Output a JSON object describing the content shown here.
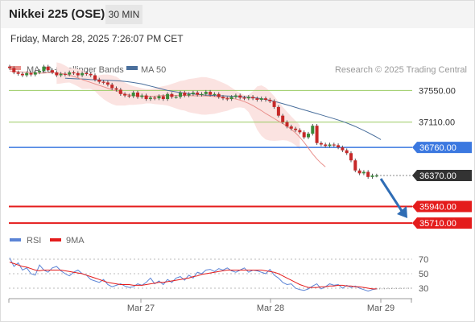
{
  "header": {
    "title": "Nikkei 225 (OSE)",
    "interval": "30 MIN",
    "timestamp": "Friday, March 28, 2025 7:26:07 PM CET"
  },
  "colors": {
    "ma20": "#e9908c",
    "band_fill": "#fbe3e1",
    "ma50": "#4a6f9c",
    "resistance": "#9acb63",
    "pivot": "#3b78e0",
    "support": "#e41c1c",
    "current": "#333333",
    "candle_up": "#3a8a3a",
    "candle_down": "#c62828",
    "rsi": "#5b84d6",
    "rsi_ma": "#e41c1c",
    "arrow": "#2f6db5"
  },
  "chart_data": {
    "type": "candlestick",
    "legend": [
      {
        "label": "MA 20 + Bollinger Bands",
        "color": "#e9908c"
      },
      {
        "label": "MA 50",
        "color": "#4a6f9c"
      }
    ],
    "credit": "Research © 2025 Trading Central",
    "x_ticks": [
      "Mar 27",
      "Mar 28",
      "Mar 29"
    ],
    "price_ylim": [
      35600,
      38000
    ],
    "levels": [
      {
        "value": 37550,
        "label": "37550.00",
        "kind": "resistance"
      },
      {
        "value": 37110,
        "label": "37110.00",
        "kind": "resistance"
      },
      {
        "value": 36760,
        "label": "36760.00",
        "kind": "pivot"
      },
      {
        "value": 36370,
        "label": "36370.00",
        "kind": "current"
      },
      {
        "value": 35940,
        "label": "35940.00",
        "kind": "support"
      },
      {
        "value": 35710,
        "label": "35710.00",
        "kind": "support"
      }
    ],
    "close": [
      37860,
      37800,
      37780,
      37760,
      37790,
      37770,
      37800,
      37820,
      37880,
      37830,
      37800,
      37760,
      37780,
      37770,
      37800,
      37790,
      37760,
      37790,
      37780,
      37760,
      37700,
      37670,
      37660,
      37630,
      37580,
      37560,
      37500,
      37480,
      37470,
      37520,
      37460,
      37480,
      37430,
      37450,
      37440,
      37470,
      37430,
      37500,
      37460,
      37460,
      37520,
      37480,
      37500,
      37520,
      37490,
      37500,
      37530,
      37490,
      37500,
      37460,
      37440,
      37430,
      37460,
      37480,
      37450,
      37440,
      37460,
      37440,
      37420,
      37440,
      37420,
      37400,
      37320,
      37200,
      37110,
      37050,
      37020,
      37000,
      36970,
      36900,
      36950,
      37060,
      36820,
      36800,
      36780,
      36800,
      36790,
      36760,
      36720,
      36680,
      36580,
      36440,
      36400,
      36420,
      36350,
      36370,
      36370
    ],
    "ma20": [
      37820,
      37815,
      37810,
      37805,
      37800,
      37795,
      37790,
      37790,
      37790,
      37795,
      37795,
      37790,
      37785,
      37775,
      37760,
      37745,
      37725,
      37700,
      37680,
      37660,
      37640,
      37620,
      37600,
      37580,
      37560,
      37540,
      37520,
      37500,
      37490,
      37480,
      37475,
      37470,
      37470,
      37470,
      37470,
      37475,
      37480,
      37480,
      37480,
      37480,
      37480,
      37480,
      37478,
      37476,
      37475,
      37475,
      37473,
      37470,
      37465,
      37460,
      37455,
      37448,
      37440,
      37430,
      37415,
      37395,
      37370,
      37340,
      37305,
      37270,
      37230,
      37195,
      37160,
      37125,
      37090,
      37055,
      37010,
      36960,
      36900,
      36830,
      36750,
      36670,
      36600,
      36540,
      36490
    ],
    "ma20_x0": 11,
    "band_width": [
      150,
      140,
      120,
      100,
      110,
      120,
      130,
      110,
      90,
      100,
      140,
      170,
      190,
      200,
      200,
      180,
      160,
      140,
      130,
      120,
      110,
      100,
      100,
      110,
      120,
      130,
      140,
      160,
      180,
      200,
      210,
      230,
      240,
      250,
      260,
      260,
      250,
      240,
      220,
      200,
      180,
      150,
      120,
      100,
      90,
      120,
      200,
      300,
      350,
      360,
      340,
      310,
      270,
      230,
      200,
      180,
      170,
      170
    ],
    "ma50": [
      37720,
      37715,
      37712,
      37710,
      37708,
      37705,
      37700,
      37698,
      37695,
      37692,
      37690,
      37688,
      37685,
      37680,
      37675,
      37668,
      37660,
      37650,
      37640,
      37625,
      37610,
      37595,
      37580,
      37565,
      37550,
      37540,
      37530,
      37520,
      37512,
      37506,
      37500,
      37495,
      37490,
      37485,
      37482,
      37480,
      37477,
      37475,
      37472,
      37470,
      37467,
      37463,
      37460,
      37455,
      37450,
      37443,
      37435,
      37425,
      37412,
      37398,
      37383,
      37367,
      37350,
      37333,
      37315,
      37297,
      37280,
      37263,
      37245,
      37228,
      37211,
      37193,
      37176,
      37158,
      37140,
      37120,
      37098,
      37075,
      37050,
      37023,
      36995,
      36965,
      36934,
      36902,
      36868
    ],
    "rsi_ylim": [
      20,
      80
    ],
    "rsi_ticks": [
      70,
      50,
      30
    ],
    "rsi_legend": [
      {
        "label": "RSI",
        "color": "#5b84d6"
      },
      {
        "label": "9MA",
        "color": "#e41c1c"
      }
    ],
    "rsi": [
      72,
      60,
      65,
      55,
      58,
      50,
      48,
      62,
      55,
      52,
      58,
      60,
      54,
      50,
      47,
      52,
      55,
      50,
      48,
      42,
      40,
      38,
      42,
      35,
      32,
      34,
      36,
      33,
      31,
      32,
      36,
      34,
      38,
      44,
      36,
      40,
      35,
      42,
      38,
      44,
      46,
      41,
      48,
      44,
      52,
      50,
      55,
      56,
      53,
      57,
      55,
      58,
      54,
      52,
      55,
      58,
      52,
      55,
      54,
      52,
      50,
      56,
      48,
      44,
      38,
      35,
      36,
      30,
      28,
      27,
      29,
      33,
      36,
      29,
      32,
      36,
      34,
      35,
      30,
      34,
      31,
      33,
      30,
      28,
      26,
      28,
      29
    ],
    "rsi_ma": [
      66,
      64,
      62,
      60,
      59,
      57,
      55,
      54,
      55,
      55,
      55,
      55,
      55,
      54,
      53,
      52,
      51,
      50,
      48,
      46,
      44,
      42,
      40,
      38,
      37,
      36,
      35,
      35,
      35,
      34,
      34,
      34,
      35,
      36,
      37,
      38,
      38,
      39,
      40,
      41,
      42,
      43,
      44,
      46,
      47,
      49,
      50,
      51,
      52,
      53,
      54,
      55,
      55,
      55,
      55,
      55,
      55,
      55,
      55,
      55,
      54,
      53,
      52,
      50,
      47,
      44,
      41,
      38,
      35,
      33,
      31,
      31,
      31,
      32,
      32,
      33,
      33,
      34,
      34,
      33,
      33,
      32,
      32,
      31,
      30,
      29,
      29
    ]
  }
}
